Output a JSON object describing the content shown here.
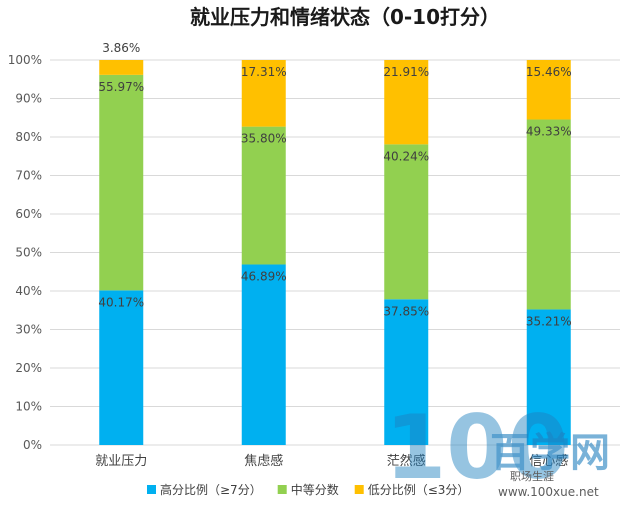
{
  "chart_data": {
    "type": "bar",
    "stacked": true,
    "percent": true,
    "title": "就业压力和情绪状态（0-10打分）",
    "categories": [
      "就业压力",
      "焦虑感",
      "茫然感",
      "信心感"
    ],
    "series": [
      {
        "name": "高分比例（≥7分）",
        "color": "#00b0f0",
        "values": [
          40.17,
          46.89,
          37.85,
          35.21
        ],
        "labels": [
          "40.17%",
          "46.89%",
          "37.85%",
          "35.21%"
        ]
      },
      {
        "name": "中等分数",
        "color": "#92d050",
        "values": [
          55.97,
          35.8,
          40.24,
          49.33
        ],
        "labels": [
          "55.97%",
          "35.80%",
          "40.24%",
          "49.33%"
        ]
      },
      {
        "name": "低分比例（≤3分）",
        "color": "#ffc000",
        "values": [
          3.86,
          17.31,
          21.91,
          15.46
        ],
        "labels": [
          "3.86%",
          "17.31%",
          "21.91%",
          "15.46%"
        ]
      }
    ],
    "ylim": [
      0,
      100
    ],
    "yticks": [
      "0%",
      "10%",
      "20%",
      "30%",
      "40%",
      "50%",
      "60%",
      "70%",
      "80%",
      "90%",
      "100%"
    ],
    "grid": true,
    "legend_position": "bottom"
  },
  "watermark": {
    "number": "100",
    "brand": "百学网",
    "url": "www.100xue.net",
    "caption": "职场生涯"
  }
}
